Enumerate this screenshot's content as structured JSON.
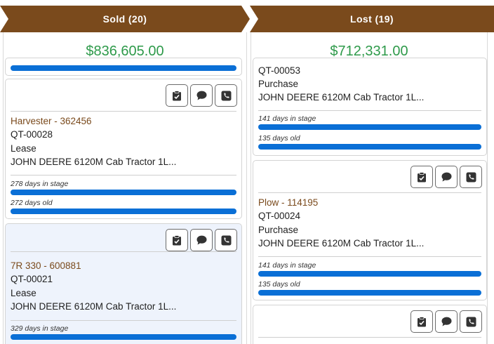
{
  "columns": {
    "sold": {
      "title": "Sold (20)",
      "total": "$836,605.00",
      "cards": [
        {
          "name": "Harvester - 362456",
          "quote": "QT-00028",
          "type": "Lease",
          "product": "JOHN DEERE 6120M Cab Tractor 1L...",
          "stage_days": "278 days in stage",
          "age": "272 days old"
        },
        {
          "name": "7R 330 - 600881",
          "quote": "QT-00021",
          "type": "Lease",
          "product": "JOHN DEERE 6120M Cab Tractor 1L...",
          "stage_days": "329 days in stage",
          "age": ""
        }
      ]
    },
    "lost": {
      "title": "Lost (19)",
      "total": "$712,331.00",
      "cards": [
        {
          "name": "",
          "quote": "QT-00053",
          "type": "Purchase",
          "product": "JOHN DEERE 6120M Cab Tractor 1L...",
          "stage_days": "141 days in stage",
          "age": "135 days old"
        },
        {
          "name": "Plow - 114195",
          "quote": "QT-00024",
          "type": "Purchase",
          "product": "JOHN DEERE 6120M Cab Tractor 1L...",
          "stage_days": "141 days in stage",
          "age": "135 days old"
        }
      ]
    }
  },
  "icons": {
    "task": "clipboard-check-icon",
    "message": "chat-bubble-icon",
    "call": "phone-icon"
  },
  "colors": {
    "header": "#7a4a1c",
    "amount": "#2e9a4a",
    "progress": "#0a6fd6",
    "card_name": "#7a4a1c",
    "highlight": "#eef3fc"
  }
}
